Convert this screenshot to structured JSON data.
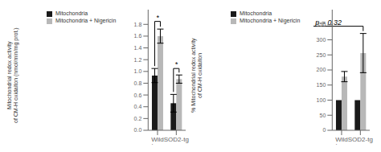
{
  "chart_data": [
    {
      "type": "bar",
      "categories": [
        "Wild type",
        "SOD2-tg"
      ],
      "series": [
        {
          "name": "Mitochondria",
          "color": "#1a1a1a",
          "values": [
            0.93,
            0.46
          ],
          "errors": [
            0.12,
            0.15
          ]
        },
        {
          "name": "Mitochondria + Nigericin",
          "color": "#b8b8b8",
          "values": [
            1.6,
            0.87
          ],
          "errors": [
            0.12,
            0.07
          ]
        }
      ],
      "ylabel": "Mitochondrial redox activity\nof CM-H oxidaiton (nmol/min/mg prot.)",
      "ylim": [
        0,
        2.05
      ],
      "yticks": [
        {
          "value": 0,
          "label": "0.0"
        },
        0.2,
        0.4,
        0.6,
        0.8,
        {
          "value": 1,
          "label": "1.0"
        },
        1.2,
        1.4,
        1.6,
        1.8
      ],
      "annotations": [
        {
          "text": "*",
          "y": 1.85,
          "from": {
            "category": "Wild type",
            "series": "Mitochondria"
          },
          "to": {
            "category": "Wild type",
            "series": "Mitochondria + Nigericin"
          }
        },
        {
          "text": "*",
          "y": 1.05,
          "from": {
            "category": "SOD2-tg",
            "series": "Mitochondria"
          },
          "to": {
            "category": "SOD2-tg",
            "series": "Mitochondria + Nigericin"
          }
        }
      ],
      "legend": "upper left",
      "grid": false
    },
    {
      "type": "bar",
      "categories": [
        "Wild type",
        "SOD2-tg"
      ],
      "series": [
        {
          "name": "Mitochondria",
          "color": "#1a1a1a",
          "values": [
            100,
            100
          ],
          "errors": [
            0,
            0
          ]
        },
        {
          "name": "Mitochondria + Nigericin",
          "color": "#b8b8b8",
          "values": [
            178,
            256
          ],
          "errors": [
            17,
            65
          ]
        }
      ],
      "ylabel": "% Mitochondrial redox activity\nof CM-H oxidaiton",
      "ylim": [
        0,
        400
      ],
      "yticks": [
        0,
        50,
        100,
        150,
        200,
        250,
        300,
        350
      ],
      "annotations": [
        {
          "text": "p = 0.32",
          "y": 345,
          "from": {
            "category": "Wild type",
            "series": "Mitochondria + Nigericin"
          },
          "to": {
            "category": "SOD2-tg",
            "series": "Mitochondria + Nigericin"
          }
        }
      ],
      "legend": "upper left",
      "grid": false
    }
  ]
}
